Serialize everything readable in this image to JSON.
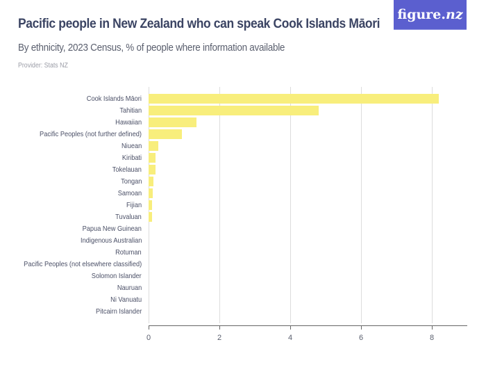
{
  "header": {
    "title": "Pacific people in New Zealand who can speak Cook Islands Māori",
    "subtitle": "By ethnicity, 2023 Census, % of people where information available",
    "provider": "Provider: Stats NZ",
    "logo_main": "figure.",
    "logo_accent": "nz"
  },
  "colors": {
    "bar": "#f8ee7c",
    "title": "#3b4463",
    "logo_bg": "#5b5fcf"
  },
  "chart_data": {
    "type": "bar",
    "orientation": "horizontal",
    "title": "Pacific people in New Zealand who can speak Cook Islands Māori",
    "subtitle": "By ethnicity, 2023 Census, % of people where information available",
    "xlabel": "",
    "ylabel": "",
    "xlim": [
      0,
      9
    ],
    "xticks": [
      0,
      2,
      4,
      6,
      8
    ],
    "grid": true,
    "legend": "none",
    "categories": [
      "Cook Islands Māori",
      "Tahitian",
      "Hawaiian",
      "Pacific Peoples (not further defined)",
      "Niuean",
      "Kiribati",
      "Tokelauan",
      "Tongan",
      "Samoan",
      "Fijian",
      "Tuvaluan",
      "Papua New Guinean",
      "Indigenous Australian",
      "Rotuman",
      "Pacific Peoples (not elsewhere classified)",
      "Solomon Islander",
      "Nauruan",
      "Ni Vanuatu",
      "Pitcairn Islander"
    ],
    "values": [
      8.2,
      4.8,
      1.35,
      0.94,
      0.27,
      0.2,
      0.2,
      0.14,
      0.12,
      0.1,
      0.1,
      0,
      0,
      0,
      0,
      0,
      0,
      0,
      0
    ]
  }
}
